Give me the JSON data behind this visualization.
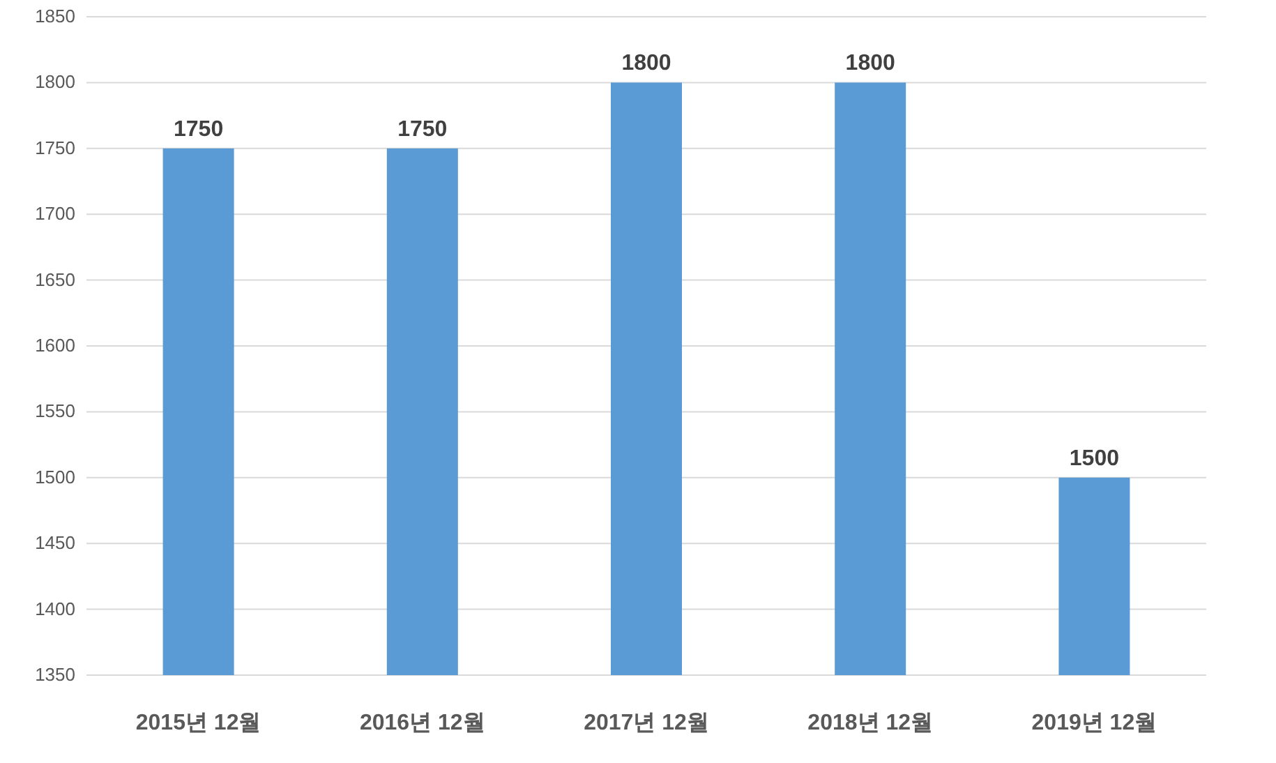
{
  "chart_data": {
    "type": "bar",
    "categories": [
      "2015년 12월",
      "2016년 12월",
      "2017년 12월",
      "2018년 12월",
      "2019년 12월"
    ],
    "values": [
      1750,
      1750,
      1800,
      1800,
      1500
    ],
    "color": "#5b9bd5",
    "ylim": [
      1350,
      1850
    ],
    "yticks": [
      1350,
      1400,
      1450,
      1500,
      1550,
      1600,
      1650,
      1700,
      1750,
      1800,
      1850
    ],
    "grid": "y",
    "data_labels": true
  }
}
